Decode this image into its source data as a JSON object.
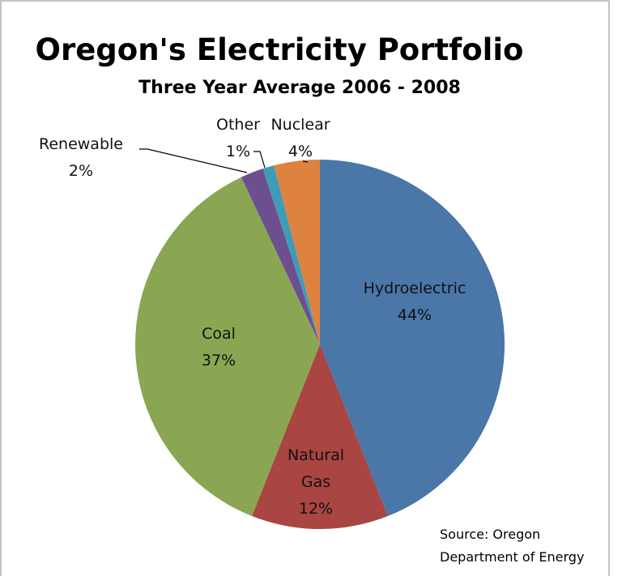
{
  "chart_data": {
    "type": "pie",
    "title": "Oregon's Electricity Portfolio",
    "subtitle": "Three Year Average 2006 - 2008",
    "categories": [
      "Hydroelectric",
      "Natural Gas",
      "Coal",
      "Renewable",
      "Other",
      "Nuclear"
    ],
    "values": [
      44,
      12,
      37,
      2,
      1,
      4
    ],
    "value_labels": [
      "44%",
      "12%",
      "37%",
      "2%",
      "1%",
      "4%"
    ],
    "colors": [
      "#4a76a8",
      "#a94542",
      "#8aa653",
      "#6c4f8f",
      "#3e9cb7",
      "#de8240"
    ],
    "source": "Source: Oregon Department of Energy"
  }
}
